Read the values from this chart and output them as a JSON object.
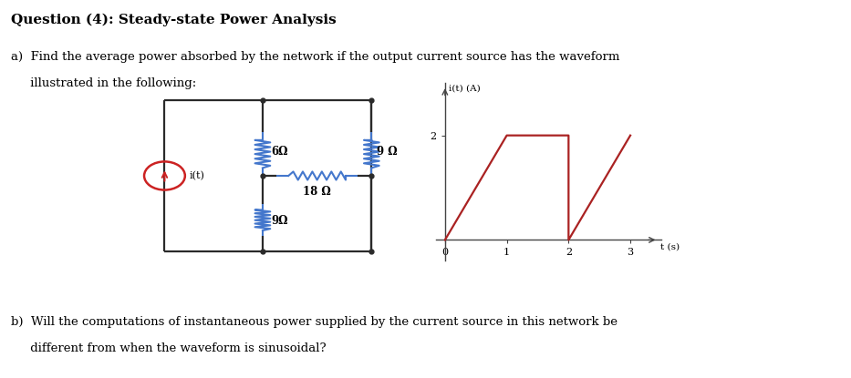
{
  "title": "Question (4): Steady-state Power Analysis",
  "part_a_line1": "a)  Find the average power absorbed by the network if the output current source has the waveform",
  "part_a_line2": "     illustrated in the following:",
  "part_b_line1": "b)  Will the computations of instantaneous power supplied by the current source in this network be",
  "part_b_line2": "     different from when the waveform is sinusoidal?",
  "background_color": "#ffffff",
  "circuit": {
    "resistor_color": "#4477cc",
    "wire_color": "#2a2a2a",
    "source_color": "#cc2222"
  },
  "waveform": {
    "x": [
      0,
      1,
      2,
      2,
      3
    ],
    "y": [
      0,
      2,
      2,
      0,
      2
    ],
    "color": "#aa2222",
    "linewidth": 1.6,
    "xlim": [
      -0.15,
      3.5
    ],
    "ylim": [
      -0.4,
      3.0
    ],
    "xticks": [
      0,
      1,
      2,
      3
    ],
    "yticks": [
      2
    ],
    "tick_fontsize": 8
  }
}
